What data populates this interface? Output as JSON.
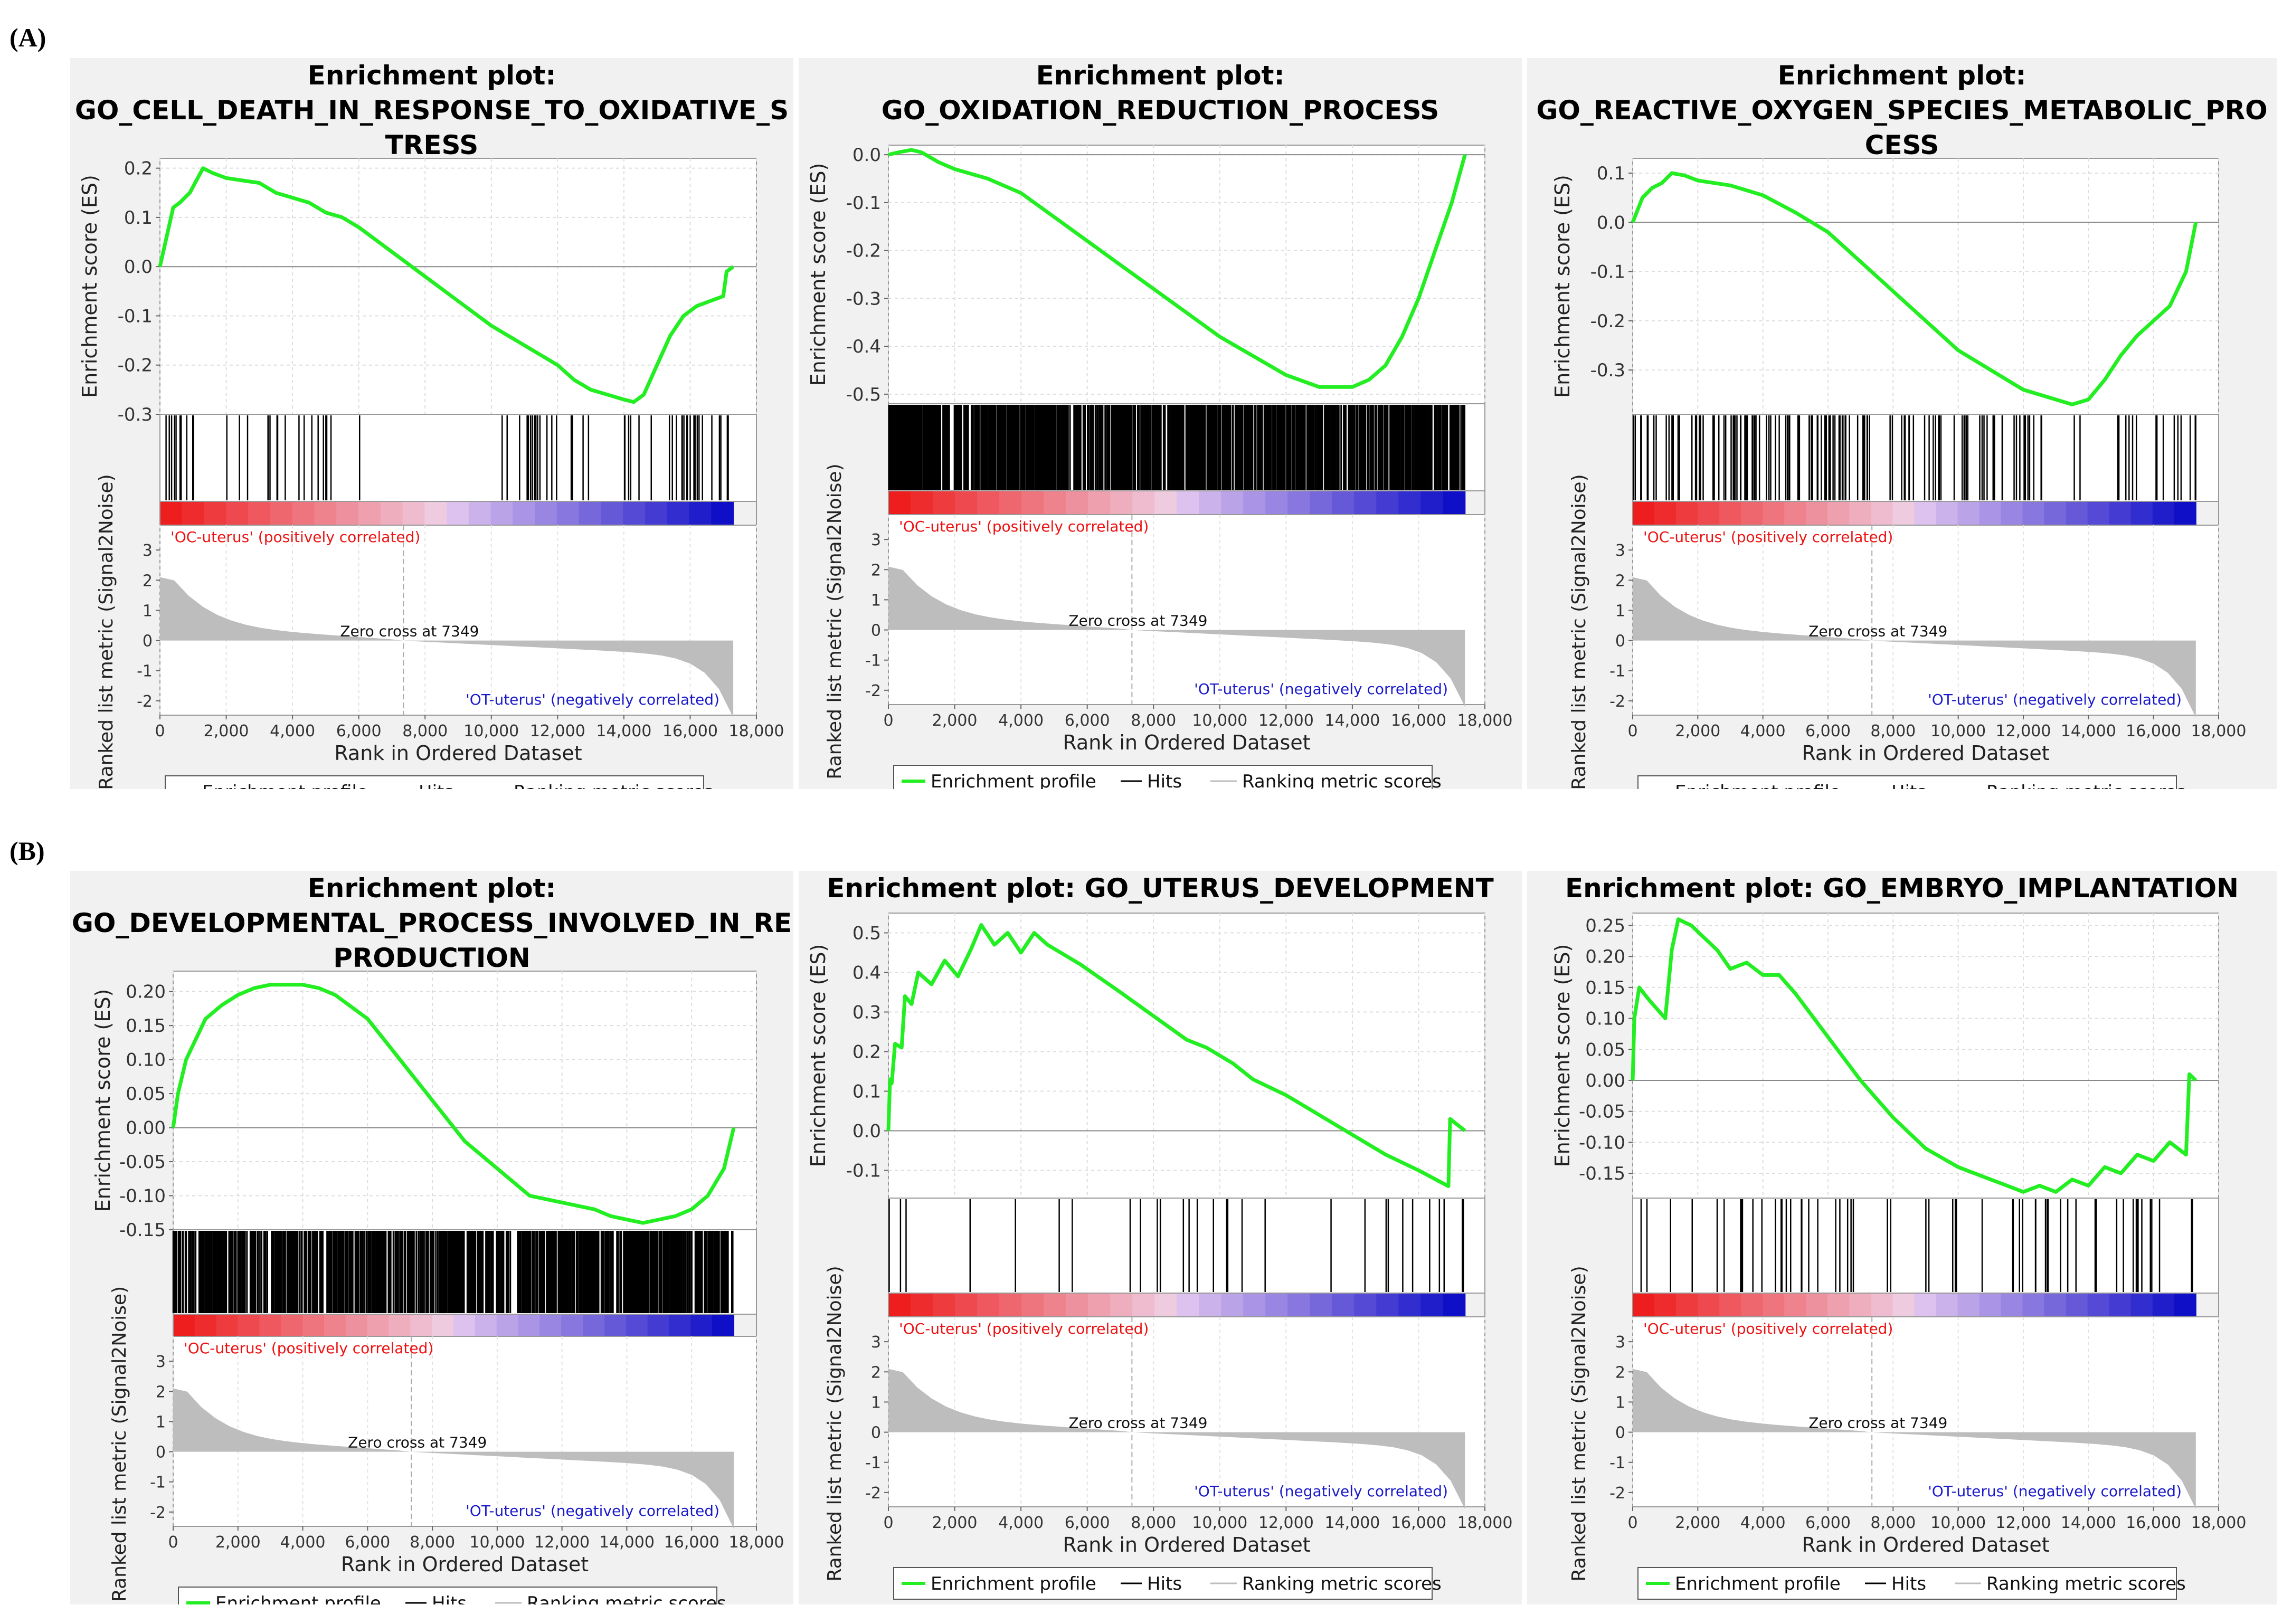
{
  "section_labels": [
    "(A)",
    "(B)"
  ],
  "common": {
    "es_axis_label": "Enrichment score (ES)",
    "metric_axis_label": "Ranked list metric (Signal2Noise)",
    "x_axis_label": "Rank in Ordered Dataset",
    "x_ticks": [
      "0",
      "2,000",
      "4,000",
      "6,000",
      "8,000",
      "10,000",
      "12,000",
      "14,000",
      "16,000",
      "18,000"
    ],
    "metric_ticks": [
      "3",
      "2",
      "1",
      "0",
      "-1",
      "-2"
    ],
    "pos_label": "'OC-uterus' (positively correlated)",
    "neg_label": "'OT-uterus' (negatively correlated)",
    "zero_cross": "Zero cross at 7349",
    "legend": [
      "Enrichment profile",
      "Hits",
      "Ranking metric scores"
    ],
    "colors": {
      "profile": "#22ee22",
      "hits": "#000000",
      "metric": "#bdbdbd",
      "pos": "#ee1111",
      "neg": "#1a1acc"
    }
  },
  "chart_data": [
    {
      "type": "line",
      "title": "Enrichment plot:\nGO_CELL_DEATH_IN_RESPONSE_TO_OXIDATIVE_S\nTRESS",
      "x_range": [
        0,
        18000
      ],
      "y_range": [
        -0.3,
        0.22
      ],
      "y_ticks": [
        "0.2",
        "0.1",
        "0.0",
        "-0.1",
        "-0.2",
        "-0.3"
      ],
      "x": [
        0,
        200,
        400,
        600,
        900,
        1300,
        1600,
        2000,
        2500,
        3000,
        3500,
        4000,
        4500,
        5000,
        5500,
        6000,
        7000,
        8000,
        9000,
        10000,
        11000,
        12000,
        12500,
        13000,
        13500,
        14000,
        14300,
        14600,
        15000,
        15400,
        15800,
        16200,
        16600,
        17000,
        17100,
        17300
      ],
      "y": [
        0.0,
        0.06,
        0.12,
        0.13,
        0.15,
        0.2,
        0.19,
        0.18,
        0.175,
        0.17,
        0.15,
        0.14,
        0.13,
        0.11,
        0.1,
        0.08,
        0.03,
        -0.02,
        -0.07,
        -0.12,
        -0.16,
        -0.2,
        -0.23,
        -0.25,
        -0.26,
        -0.27,
        -0.275,
        -0.26,
        -0.2,
        -0.14,
        -0.1,
        -0.08,
        -0.07,
        -0.06,
        -0.01,
        0.0
      ],
      "hit_bands": [
        [
          0,
          6800
        ],
        [
          10300,
          13000
        ],
        [
          14000,
          17300
        ]
      ],
      "hit_density": 0.01,
      "hit_count": 75
    },
    {
      "type": "line",
      "title": "Enrichment plot:\nGO_OXIDATION_REDUCTION_PROCESS",
      "x_range": [
        0,
        18000
      ],
      "y_range": [
        -0.52,
        0.02
      ],
      "y_ticks": [
        "0.0",
        "-0.1",
        "-0.2",
        "-0.3",
        "-0.4",
        "-0.5"
      ],
      "x": [
        0,
        300,
        700,
        1000,
        1500,
        2000,
        3000,
        4000,
        5000,
        6000,
        7000,
        8000,
        9000,
        10000,
        11000,
        12000,
        13000,
        14000,
        14500,
        15000,
        15500,
        16000,
        16500,
        17000,
        17400
      ],
      "y": [
        0.0,
        0.005,
        0.01,
        0.005,
        -0.015,
        -0.03,
        -0.05,
        -0.08,
        -0.13,
        -0.18,
        -0.23,
        -0.28,
        -0.33,
        -0.38,
        -0.42,
        -0.46,
        -0.485,
        -0.485,
        -0.47,
        -0.44,
        -0.38,
        -0.3,
        -0.2,
        -0.1,
        0.0
      ],
      "hit_bands": [
        [
          0,
          17400
        ]
      ],
      "hit_density": 1,
      "hit_count": 900
    },
    {
      "type": "line",
      "title": "Enrichment plot:\nGO_REACTIVE_OXYGEN_SPECIES_METABOLIC_PRO\nCESS",
      "x_range": [
        0,
        18000
      ],
      "y_range": [
        -0.39,
        0.13
      ],
      "y_ticks": [
        "0.1",
        "0.0",
        "-0.1",
        "-0.2",
        "-0.3"
      ],
      "x": [
        0,
        300,
        600,
        900,
        1200,
        1600,
        2000,
        3000,
        4000,
        5000,
        6000,
        7000,
        8000,
        9000,
        10000,
        11000,
        12000,
        13000,
        13500,
        14000,
        14500,
        15000,
        15500,
        16000,
        16500,
        17000,
        17300
      ],
      "y": [
        0.0,
        0.05,
        0.07,
        0.08,
        0.1,
        0.095,
        0.085,
        0.075,
        0.055,
        0.02,
        -0.02,
        -0.08,
        -0.14,
        -0.2,
        -0.26,
        -0.3,
        -0.34,
        -0.36,
        -0.37,
        -0.36,
        -0.32,
        -0.27,
        -0.23,
        -0.2,
        -0.17,
        -0.1,
        0.0
      ],
      "hit_bands": [
        [
          0,
          7300
        ],
        [
          7900,
          17300
        ]
      ],
      "hit_density": 0.02,
      "hit_count": 150
    },
    {
      "type": "line",
      "title": "Enrichment plot:\nGO_DEVELOPMENTAL_PROCESS_INVOLVED_IN_RE\nPRODUCTION",
      "x_range": [
        0,
        18000
      ],
      "y_range": [
        -0.15,
        0.23
      ],
      "y_ticks": [
        "0.20",
        "0.15",
        "0.10",
        "0.05",
        "0.00",
        "-0.05",
        "-0.10",
        "-0.15"
      ],
      "x": [
        0,
        150,
        400,
        700,
        1000,
        1500,
        2000,
        2500,
        3000,
        3500,
        4000,
        4500,
        5000,
        6000,
        7000,
        8000,
        9000,
        10000,
        11000,
        12000,
        12500,
        13000,
        13500,
        14000,
        14500,
        15000,
        15500,
        16000,
        16500,
        17000,
        17300
      ],
      "y": [
        0.0,
        0.05,
        0.1,
        0.13,
        0.16,
        0.18,
        0.195,
        0.205,
        0.21,
        0.21,
        0.21,
        0.205,
        0.195,
        0.16,
        0.1,
        0.04,
        -0.02,
        -0.06,
        -0.1,
        -0.11,
        -0.115,
        -0.12,
        -0.13,
        -0.135,
        -0.14,
        -0.135,
        -0.13,
        -0.12,
        -0.1,
        -0.06,
        0.0
      ],
      "hit_bands": [
        [
          0,
          17300
        ]
      ],
      "hit_density": 1,
      "hit_count": 700
    },
    {
      "type": "line",
      "title": "Enrichment plot: GO_UTERUS_DEVELOPMENT",
      "x_range": [
        0,
        18000
      ],
      "y_range": [
        -0.17,
        0.55
      ],
      "y_ticks": [
        "0.5",
        "0.4",
        "0.3",
        "0.2",
        "0.1",
        "0.0",
        "-0.1"
      ],
      "x": [
        0,
        50,
        100,
        200,
        400,
        500,
        700,
        900,
        1300,
        1700,
        2100,
        2500,
        2800,
        3200,
        3600,
        4000,
        4400,
        4800,
        5800,
        7000,
        8000,
        9000,
        9600,
        10400,
        11000,
        12000,
        13000,
        14000,
        15000,
        16000,
        16900,
        16950,
        17400
      ],
      "y": [
        0.0,
        0.13,
        0.12,
        0.22,
        0.21,
        0.34,
        0.32,
        0.4,
        0.37,
        0.43,
        0.39,
        0.46,
        0.52,
        0.47,
        0.5,
        0.45,
        0.5,
        0.47,
        0.42,
        0.35,
        0.29,
        0.23,
        0.21,
        0.17,
        0.13,
        0.09,
        0.04,
        -0.01,
        -0.06,
        -0.1,
        -0.14,
        0.03,
        0.0
      ],
      "hit_bands": [
        [
          0,
          17400
        ]
      ],
      "hit_density": 0.002,
      "hit_count": 30
    },
    {
      "type": "line",
      "title": "Enrichment plot: GO_EMBRYO_IMPLANTATION",
      "x_range": [
        0,
        18000
      ],
      "y_range": [
        -0.19,
        0.27
      ],
      "y_ticks": [
        "0.25",
        "0.20",
        "0.15",
        "0.10",
        "0.05",
        "0.00",
        "-0.05",
        "-0.10",
        "-0.15"
      ],
      "x": [
        0,
        50,
        200,
        500,
        1000,
        1200,
        1400,
        1800,
        2200,
        2600,
        3000,
        3500,
        4000,
        4500,
        5000,
        6000,
        7000,
        8000,
        9000,
        10000,
        11000,
        11500,
        12000,
        12500,
        13000,
        13500,
        14000,
        14500,
        15000,
        15500,
        16000,
        16500,
        17000,
        17100,
        17300
      ],
      "y": [
        0.0,
        0.1,
        0.15,
        0.13,
        0.1,
        0.21,
        0.26,
        0.25,
        0.23,
        0.21,
        0.18,
        0.19,
        0.17,
        0.17,
        0.14,
        0.07,
        0.0,
        -0.06,
        -0.11,
        -0.14,
        -0.16,
        -0.17,
        -0.18,
        -0.17,
        -0.18,
        -0.16,
        -0.17,
        -0.14,
        -0.15,
        -0.12,
        -0.13,
        -0.1,
        -0.12,
        0.01,
        0.0
      ],
      "hit_bands": [
        [
          0,
          17300
        ]
      ],
      "hit_density": 0.005,
      "hit_count": 60
    }
  ]
}
